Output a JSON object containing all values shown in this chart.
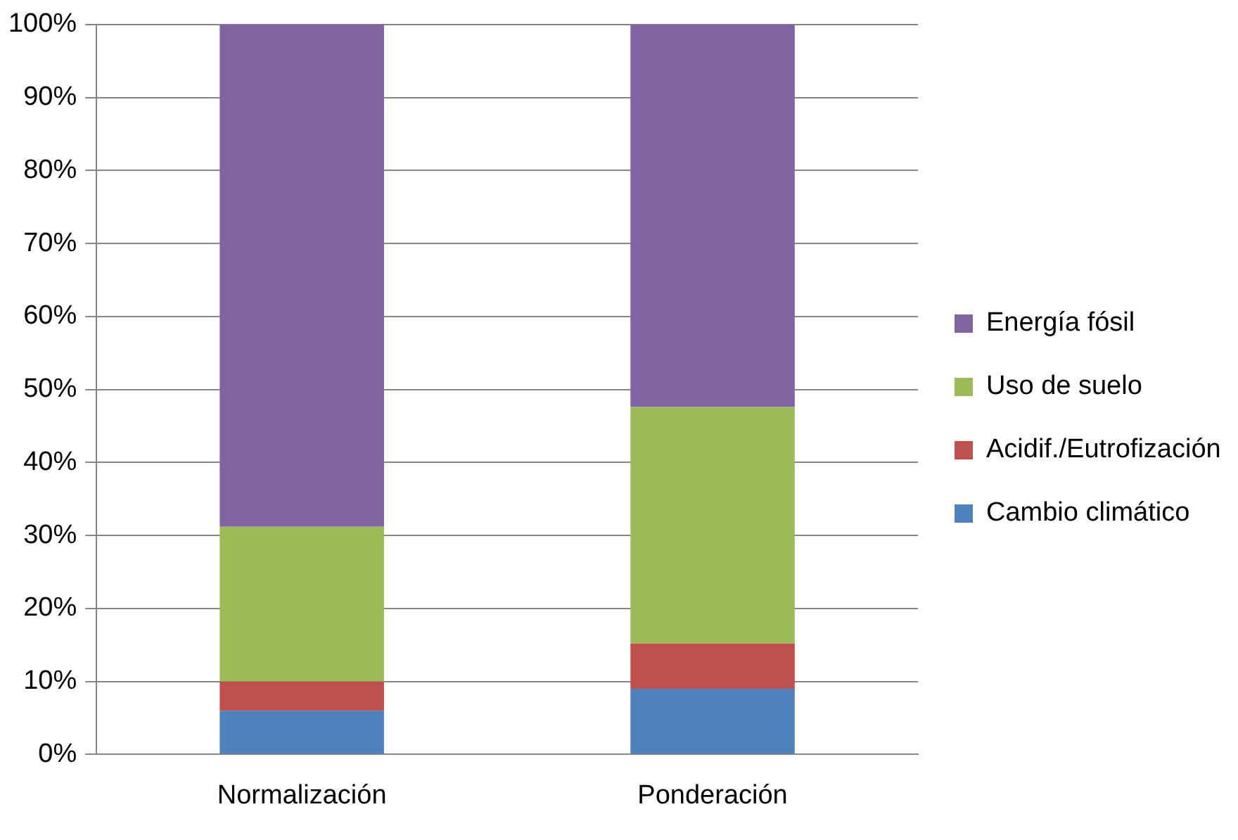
{
  "chart_data": {
    "type": "bar",
    "stacked": true,
    "categories": [
      "Normalización",
      "Ponderación"
    ],
    "series": [
      {
        "name": "Cambio climático",
        "color": "#4f81bd",
        "values": [
          6.0,
          9.0
        ]
      },
      {
        "name": "Acidif./Eutrofización",
        "color": "#c0504d",
        "values": [
          4.0,
          6.2
        ]
      },
      {
        "name": "Uso de suelo",
        "color": "#9bbb59",
        "values": [
          21.2,
          32.4
        ]
      },
      {
        "name": "Energía fósil",
        "color": "#8064a2",
        "values": [
          68.8,
          52.4
        ]
      }
    ],
    "ylim": [
      0,
      100
    ],
    "yticks": [
      {
        "value": 0,
        "label": "0%"
      },
      {
        "value": 10,
        "label": "10%"
      },
      {
        "value": 20,
        "label": "20%"
      },
      {
        "value": 30,
        "label": "30%"
      },
      {
        "value": 40,
        "label": "40%"
      },
      {
        "value": 50,
        "label": "50%"
      },
      {
        "value": 60,
        "label": "60%"
      },
      {
        "value": 70,
        "label": "70%"
      },
      {
        "value": 80,
        "label": "80%"
      },
      {
        "value": 90,
        "label": "90%"
      },
      {
        "value": 100,
        "label": "100%"
      }
    ],
    "grid": "y",
    "legend": "right"
  }
}
